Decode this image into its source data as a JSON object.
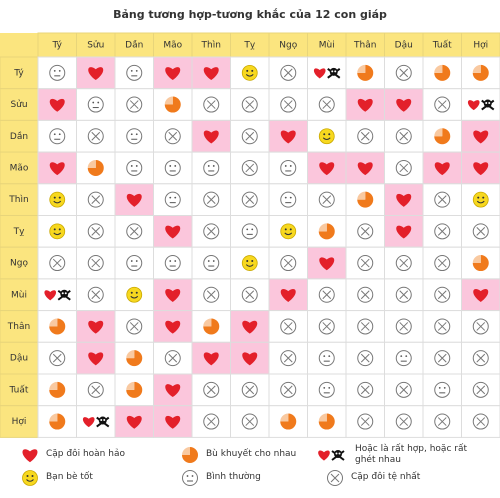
{
  "title": "Bảng tương hợp-tương khắc của 12 con giáp",
  "table": {
    "columns": [
      "Tý",
      "Sửu",
      "Dần",
      "Mão",
      "Thìn",
      "Tỵ",
      "Ngọ",
      "Mùi",
      "Thân",
      "Dậu",
      "Tuất",
      "Hợi"
    ],
    "rows": [
      {
        "label": "Tý",
        "cells": [
          4,
          0,
          4,
          0,
          0,
          3,
          5,
          2,
          1,
          5,
          1,
          1
        ]
      },
      {
        "label": "Sửu",
        "cells": [
          0,
          4,
          5,
          1,
          5,
          5,
          5,
          5,
          0,
          0,
          5,
          2
        ]
      },
      {
        "label": "Dần",
        "cells": [
          4,
          5,
          4,
          5,
          0,
          5,
          0,
          3,
          5,
          5,
          1,
          0
        ]
      },
      {
        "label": "Mão",
        "cells": [
          0,
          1,
          4,
          4,
          4,
          5,
          4,
          0,
          0,
          5,
          0,
          0
        ]
      },
      {
        "label": "Thìn",
        "cells": [
          3,
          5,
          0,
          4,
          5,
          5,
          4,
          5,
          1,
          0,
          5,
          3
        ]
      },
      {
        "label": "Tỵ",
        "cells": [
          3,
          5,
          5,
          0,
          5,
          4,
          3,
          1,
          5,
          0,
          5,
          5
        ]
      },
      {
        "label": "Ngọ",
        "cells": [
          5,
          5,
          4,
          4,
          4,
          3,
          5,
          0,
          5,
          5,
          5,
          1
        ]
      },
      {
        "label": "Mùi",
        "cells": [
          2,
          5,
          3,
          0,
          5,
          5,
          0,
          5,
          5,
          5,
          5,
          0
        ]
      },
      {
        "label": "Thân",
        "cells": [
          1,
          0,
          5,
          0,
          1,
          0,
          5,
          5,
          5,
          5,
          5,
          5
        ]
      },
      {
        "label": "Dậu",
        "cells": [
          5,
          0,
          1,
          5,
          0,
          0,
          5,
          4,
          5,
          4,
          5,
          5
        ]
      },
      {
        "label": "Tuất",
        "cells": [
          1,
          5,
          1,
          0,
          5,
          5,
          5,
          4,
          5,
          5,
          4,
          5
        ]
      },
      {
        "label": "Hợi",
        "cells": [
          1,
          2,
          0,
          0,
          5,
          5,
          1,
          1,
          5,
          5,
          5,
          5
        ]
      }
    ]
  },
  "legend": [
    "Cặp đôi hoàn hảo",
    "Bù khuyết cho nhau",
    "Hoặc là rất hợp, hoặc rất ghét nhau",
    "Bạn bè tốt",
    "Bình thường",
    "Cặp đôi tệ nhất"
  ]
}
